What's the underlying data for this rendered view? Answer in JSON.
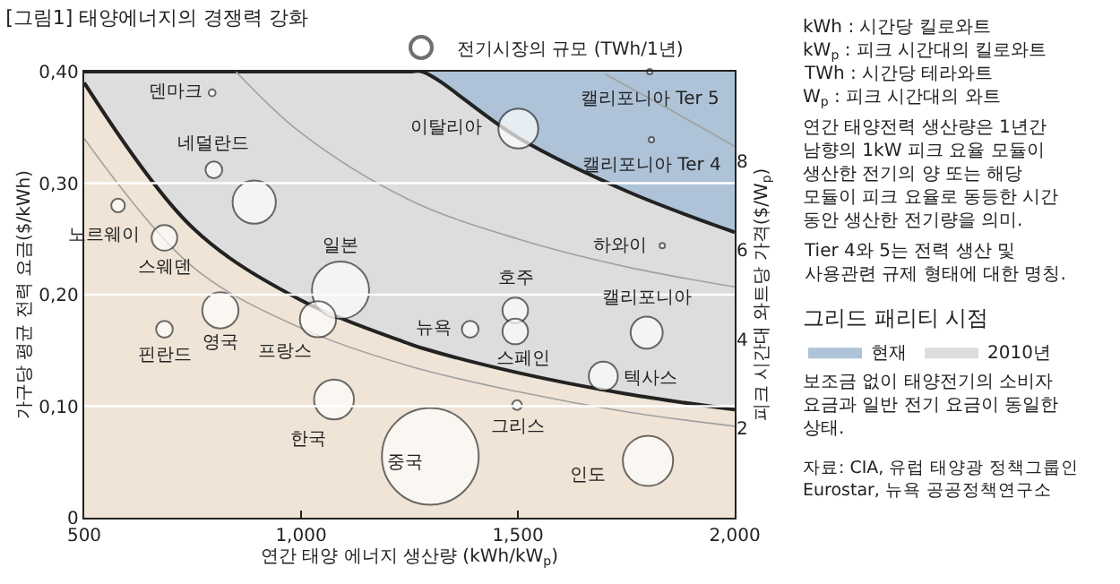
{
  "chart_data": {
    "type": "bubble",
    "title": "[그림1] 태양에너지의 경쟁력 강화",
    "xlabel": "연간 태양 에너지 생산량 (kWh/kW$_{p}$)",
    "ylabel": "가구당 평균 전력 요금($/kWh)",
    "y2label": "피크 시간대 와트당 가격($/W$_{p}$)",
    "legend_title": "그리드 패리티 시점",
    "legend": "right",
    "xlim": [
      500,
      2000
    ],
    "xticks": [
      500,
      {
        "value": 1000,
        "label": "1,000"
      },
      {
        "value": 1500,
        "label": "1,500"
      },
      {
        "value": 2000,
        "label": "2,000"
      }
    ],
    "ylim": [
      0,
      0.4
    ],
    "yticks": [
      0,
      {
        "value": 0.1,
        "label": "0,10"
      },
      {
        "value": 0.2,
        "label": "0,20"
      },
      {
        "value": 0.3,
        "label": "0,30"
      },
      {
        "value": 0.4,
        "label": "0,40"
      }
    ],
    "y2lim": [
      0,
      10
    ],
    "y2ticks": [
      2,
      4,
      6,
      8
    ],
    "grid": "y",
    "series": [
      {
        "type": "area",
        "name": "현재",
        "color": "#aec3d8",
        "x": [
          1280,
          1500,
          1750,
          2000
        ],
        "values": [
          0.4,
          0.4,
          0.4,
          0.4
        ]
      },
      {
        "type": "area",
        "name": "2010년",
        "color": "#dcdddc",
        "line_style": "solid",
        "x": [
          500,
          750,
          1000,
          1250,
          1280,
          1500,
          1750,
          2000
        ],
        "values": [
          0.4,
          0.4,
          0.4,
          0.4,
          0.4,
          0.341,
          0.293,
          0.256
        ]
      },
      {
        "type": "area",
        "color": "#efe4d6",
        "line_style": "solid",
        "x": [
          500,
          750,
          1000,
          1250,
          1280,
          1500,
          1750,
          2000
        ],
        "values": [
          0.39,
          0.26,
          0.195,
          0.156,
          0.152,
          0.13,
          0.111,
          0.097
        ]
      },
      {
        "type": "line",
        "color": "#a0a0a0",
        "x": [
          500,
          750,
          1000,
          1250,
          1500,
          1750,
          2000
        ],
        "values": [
          0.34,
          0.225,
          0.17,
          0.136,
          0.113,
          0.095,
          0.082
        ]
      },
      {
        "type": "line",
        "color": "#a0a0a0",
        "x": [
          850,
          1000,
          1250,
          1500,
          1750,
          2000
        ],
        "values": [
          0.4,
          0.345,
          0.285,
          0.25,
          0.225,
          0.207
        ]
      },
      {
        "type": "line",
        "color": "#a0a0a0",
        "x": [
          1700,
          1850,
          2000
        ],
        "values": [
          0.398,
          0.366,
          0.333
        ]
      },
      {
        "name": "전기시장의 규모 (TWh/1년)",
        "color": "#ffffff",
        "x": [
          795,
          799,
          892,
          578,
          685,
          1091,
          814,
          685,
          1039,
          1076,
          1298,
          1501,
          1804,
          1808,
          1833,
          1494,
          1494,
          1390,
          1797,
          1697,
          1498,
          1800
        ],
        "values": [
          0.381,
          0.312,
          0.283,
          0.28,
          0.251,
          0.204,
          0.186,
          0.169,
          0.178,
          0.106,
          0.055,
          0.349,
          0.4,
          0.339,
          0.244,
          0.186,
          0.167,
          0.169,
          0.166,
          0.127,
          0.101,
          0.051
        ],
        "sizes": [
          0.005,
          0.03,
          0.2,
          0.02,
          0.07,
          0.35,
          0.14,
          0.03,
          0.14,
          0.17,
          1,
          0.17,
          0.003,
          0.003,
          0.003,
          0.07,
          0.07,
          0.03,
          0.11,
          0.09,
          0.01,
          0.27
        ]
      }
    ],
    "annotations": [
      "kWh : 시간당 킬로와트",
      "kW$_{p}$ : 피크 시간대의 킬로와트",
      "TWh : 시간당 테라와트",
      "W$_{p}$ : 피크 시간대의 와트",
      "연간 태양전력 생산량은 1년간 남향의 1kW 피크 요율 모듈이 생산한 전기의 양 또는 해당 모듈이 피크 요율로 동등한 시간 동안 생산한 전기량을 의미.",
      "Tier 4와 5는 전력 생산 및 사용관련 규제 형태에 대한 명칭.",
      "보조금 없이 태양전기의 소비자 요금과 일반 전기 요금이 동일한 상태.",
      "자료: CIA, 유럽 태양광 정책그룹인 Eurostar, 뉴욕 공공정책연구소",
      {
        "text": "덴마크",
        "x": 795,
        "y": 0.381
      },
      {
        "text": "네덜란드",
        "x": 799,
        "y": 0.312
      },
      {
        "text": "노르웨이",
        "x": 578,
        "y": 0.28
      },
      {
        "text": "스웨덴",
        "x": 685,
        "y": 0.251
      },
      {
        "text": "일본",
        "x": 1091,
        "y": 0.204
      },
      {
        "text": "영국",
        "x": 814,
        "y": 0.186
      },
      {
        "text": "핀란드",
        "x": 685,
        "y": 0.169
      },
      {
        "text": "프랑스",
        "x": 1039,
        "y": 0.178
      },
      {
        "text": "한국",
        "x": 1076,
        "y": 0.106
      },
      {
        "text": "중국",
        "x": 1298,
        "y": 0.055
      },
      {
        "text": "이탈리아",
        "x": 1501,
        "y": 0.349
      },
      {
        "text": "캘리포니아 Ter 5",
        "x": 1804,
        "y": 0.4
      },
      {
        "text": "캘리포니아 Ter 4",
        "x": 1808,
        "y": 0.339
      },
      {
        "text": "하와이",
        "x": 1833,
        "y": 0.244
      },
      {
        "text": "호주",
        "x": 1494,
        "y": 0.186
      },
      {
        "text": "스페인",
        "x": 1494,
        "y": 0.167
      },
      {
        "text": "뉴욕",
        "x": 1390,
        "y": 0.169
      },
      {
        "text": "캘리포니아",
        "x": 1797,
        "y": 0.166
      },
      {
        "text": "텍사스",
        "x": 1697,
        "y": 0.127
      },
      {
        "text": "그리스",
        "x": 1498,
        "y": 0.101
      },
      {
        "text": "인도",
        "x": 1800,
        "y": 0.051
      }
    ]
  }
}
